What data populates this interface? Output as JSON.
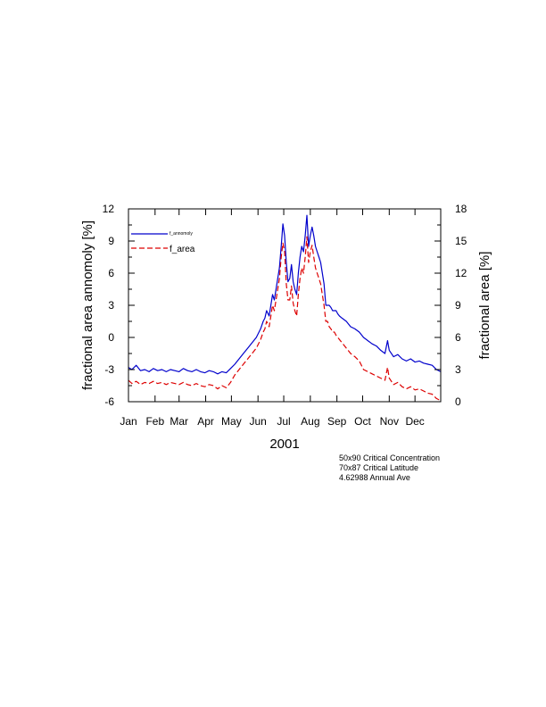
{
  "chart_data": {
    "type": "line",
    "xlabel": "2001",
    "ylabel_left": "fractional area annomoly [%]",
    "ylabel_right": "fractional area [%]",
    "x_tick_labels": [
      "Jan",
      "Feb",
      "Mar",
      "Apr",
      "May",
      "Jun",
      "Jul",
      "Aug",
      "Sep",
      "Oct",
      "Nov",
      "Dec"
    ],
    "x_domain": [
      1,
      365
    ],
    "ylim_left": [
      -6,
      12
    ],
    "ylim_right": [
      0,
      18
    ],
    "yticks_left": [
      "-6",
      "-3",
      "0",
      "3",
      "6",
      "9",
      "12"
    ],
    "yticks_right": [
      "0",
      "3",
      "6",
      "9",
      "12",
      "15",
      "18"
    ],
    "legend_position": "top-left",
    "grid": false,
    "series": [
      {
        "name": "f_annomoly",
        "axis": "left",
        "color": "#0000cc",
        "style": "solid",
        "x": [
          1,
          5,
          10,
          15,
          20,
          25,
          30,
          35,
          40,
          45,
          50,
          55,
          60,
          65,
          70,
          75,
          80,
          85,
          90,
          95,
          100,
          105,
          110,
          115,
          120,
          125,
          130,
          135,
          140,
          145,
          150,
          155,
          158,
          160,
          162,
          165,
          167,
          169,
          171,
          173,
          175,
          177,
          179,
          181,
          183,
          185,
          187,
          189,
          191,
          193,
          195,
          197,
          199,
          201,
          203,
          205,
          207,
          209,
          211,
          213,
          215,
          217,
          219,
          221,
          223,
          225,
          227,
          229,
          231,
          233,
          235,
          237,
          239,
          241,
          243,
          245,
          247,
          250,
          255,
          260,
          265,
          270,
          275,
          280,
          285,
          290,
          295,
          300,
          303,
          305,
          310,
          315,
          320,
          325,
          330,
          335,
          340,
          345,
          350,
          355,
          360,
          365
        ],
        "y": [
          -2.8,
          -3.0,
          -2.6,
          -3.1,
          -3.0,
          -3.2,
          -2.9,
          -3.1,
          -3.0,
          -3.2,
          -3.0,
          -3.1,
          -3.2,
          -2.9,
          -3.1,
          -3.2,
          -3.0,
          -3.2,
          -3.3,
          -3.1,
          -3.2,
          -3.4,
          -3.2,
          -3.3,
          -2.9,
          -2.5,
          -2.0,
          -1.5,
          -1.0,
          -0.5,
          0.0,
          0.8,
          1.5,
          1.8,
          2.5,
          2.0,
          3.0,
          4.0,
          3.5,
          4.5,
          5.5,
          6.5,
          8.5,
          10.6,
          9.5,
          7.0,
          5.2,
          5.5,
          6.8,
          5.2,
          4.5,
          4.0,
          6.0,
          7.5,
          8.5,
          8.0,
          9.5,
          11.4,
          8.5,
          9.5,
          10.3,
          9.5,
          8.5,
          8.0,
          7.5,
          7.0,
          6.0,
          5.0,
          3.0,
          3.0,
          3.0,
          2.8,
          2.5,
          2.5,
          2.5,
          2.2,
          2.0,
          1.8,
          1.5,
          1.0,
          0.8,
          0.5,
          0.0,
          -0.3,
          -0.6,
          -0.8,
          -1.2,
          -1.5,
          -0.3,
          -1.2,
          -1.8,
          -1.6,
          -2.0,
          -2.2,
          -2.0,
          -2.3,
          -2.2,
          -2.4,
          -2.5,
          -2.6,
          -3.0,
          -3.2
        ]
      },
      {
        "name": "f_area",
        "axis": "right",
        "color": "#dd0000",
        "style": "dashed",
        "x": [
          1,
          5,
          10,
          15,
          20,
          25,
          30,
          35,
          40,
          45,
          50,
          55,
          60,
          65,
          70,
          75,
          80,
          85,
          90,
          95,
          100,
          105,
          110,
          115,
          120,
          125,
          130,
          135,
          140,
          145,
          150,
          155,
          158,
          160,
          162,
          165,
          167,
          169,
          171,
          173,
          175,
          177,
          179,
          181,
          183,
          185,
          187,
          189,
          191,
          193,
          195,
          197,
          199,
          201,
          203,
          205,
          207,
          209,
          211,
          213,
          215,
          217,
          219,
          221,
          223,
          225,
          227,
          229,
          231,
          233,
          235,
          237,
          239,
          241,
          243,
          245,
          247,
          250,
          255,
          260,
          265,
          270,
          275,
          280,
          285,
          290,
          295,
          300,
          303,
          305,
          310,
          315,
          320,
          325,
          330,
          335,
          340,
          345,
          350,
          355,
          360,
          365
        ],
        "y": [
          2.0,
          1.7,
          1.9,
          1.6,
          1.8,
          1.7,
          1.9,
          1.7,
          1.8,
          1.6,
          1.8,
          1.7,
          1.6,
          1.8,
          1.6,
          1.5,
          1.7,
          1.5,
          1.4,
          1.6,
          1.5,
          1.2,
          1.5,
          1.3,
          1.8,
          2.5,
          3.0,
          3.5,
          4.0,
          4.5,
          5.0,
          5.8,
          6.5,
          6.8,
          7.5,
          7.0,
          8.0,
          9.0,
          8.5,
          9.5,
          10.5,
          11.5,
          13.5,
          14.8,
          14.0,
          11.0,
          9.5,
          9.5,
          10.8,
          9.2,
          8.5,
          8.0,
          10.0,
          11.5,
          12.5,
          12.0,
          13.5,
          15.4,
          13.0,
          14.0,
          14.6,
          13.5,
          12.5,
          12.0,
          11.5,
          11.0,
          10.0,
          9.0,
          7.5,
          7.5,
          7.0,
          6.8,
          6.5,
          6.5,
          6.2,
          6.0,
          5.8,
          5.5,
          5.0,
          4.5,
          4.2,
          3.8,
          3.0,
          2.8,
          2.6,
          2.4,
          2.2,
          2.0,
          3.2,
          2.2,
          1.6,
          1.8,
          1.4,
          1.2,
          1.4,
          1.1,
          1.2,
          1.0,
          0.8,
          0.7,
          0.3,
          0.1
        ]
      }
    ]
  },
  "notes": {
    "line1": "50x90 Critical Concentration",
    "line2": "70x87 Critical Latitude",
    "line3": "4.62988 Annual Ave"
  }
}
